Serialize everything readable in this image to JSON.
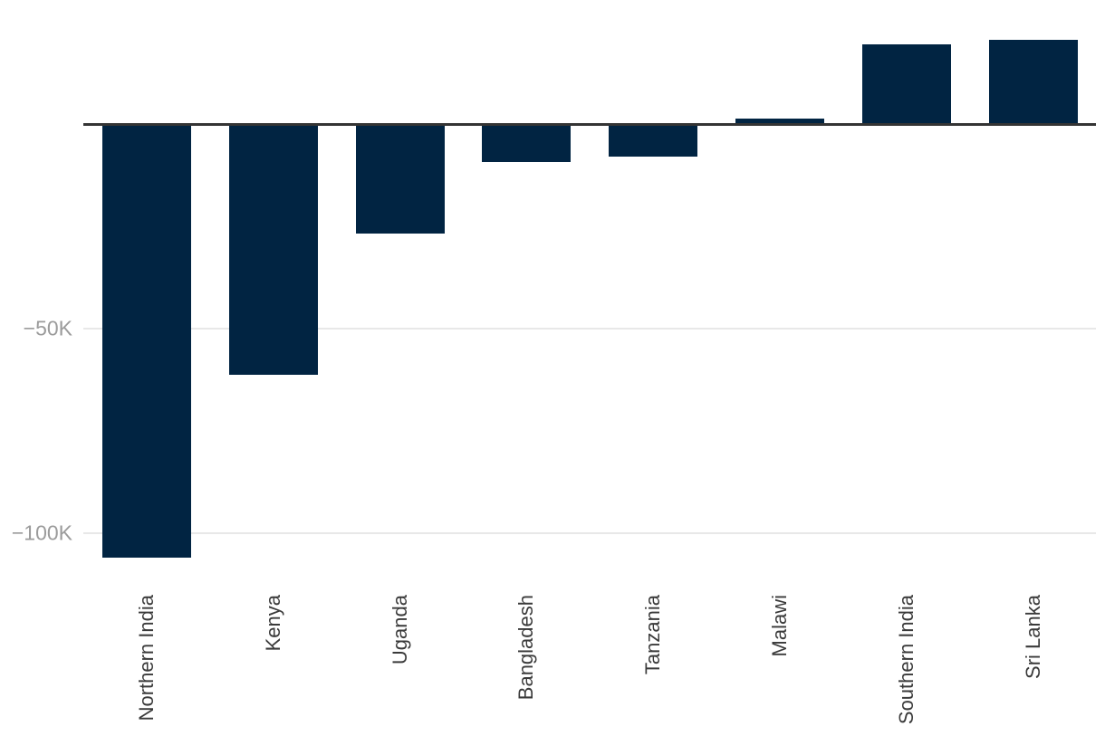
{
  "chart_data": {
    "type": "bar",
    "title": "",
    "xlabel": "",
    "ylabel": "",
    "categories": [
      "Northern India",
      "Kenya",
      "Uganda",
      "Bangladesh",
      "Tanzania",
      "Malawi",
      "Southern India",
      "Sri Lanka"
    ],
    "values": [
      -106000,
      -61400,
      -26700,
      -9300,
      -7900,
      1500,
      19600,
      20800
    ],
    "yticks": [
      {
        "value": -50000,
        "label": "−50K"
      },
      {
        "value": -100000,
        "label": "−100K"
      }
    ],
    "ylim": [
      -110500,
      30500
    ],
    "grid": "horizontal-only",
    "legend_position": "none",
    "colors": {
      "bar": "#012442",
      "zero_axis_line": "#343434",
      "gridline": "#e8e8e8",
      "ytick_label": "#9b9b9b",
      "category_label": "#3a3a3a",
      "background": "#ffffff"
    }
  }
}
